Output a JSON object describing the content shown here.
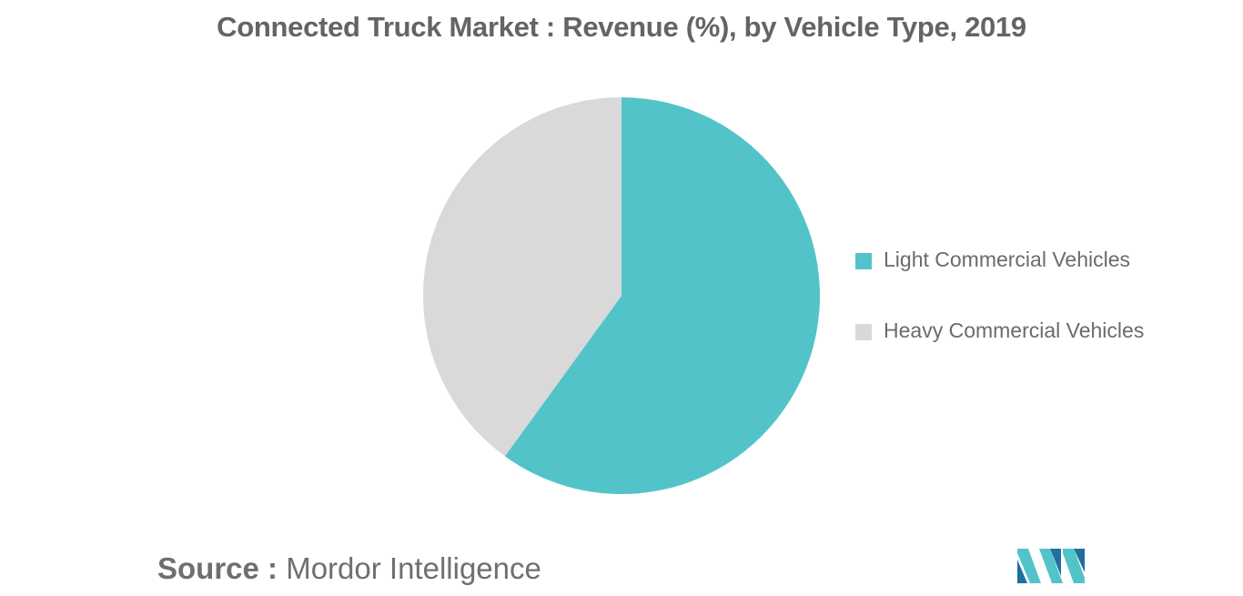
{
  "title": "Connected Truck Market : Revenue (%), by Vehicle Type, 2019",
  "chart_data": {
    "type": "pie",
    "title": "Connected Truck Market : Revenue (%), by Vehicle Type, 2019",
    "slices": [
      {
        "label": "Light Commercial Vehicles",
        "value": 60,
        "color": "#52c4c9"
      },
      {
        "label": "Heavy Commercial Vehicles",
        "value": 40,
        "color": "#d9d9d9"
      }
    ],
    "legend_position": "right"
  },
  "source": {
    "label": "Source :",
    "text": "Mordor Intelligence"
  },
  "logo": {
    "name": "mordor-intelligence-logo",
    "colors": [
      "#1f6f9f",
      "#52c4c9"
    ]
  }
}
